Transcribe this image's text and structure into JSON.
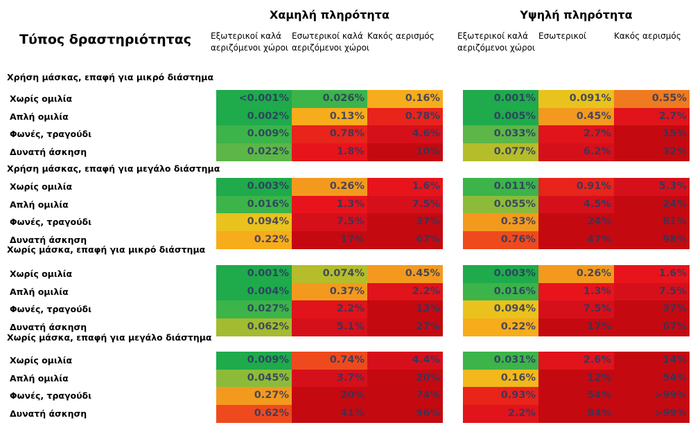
{
  "header": {
    "title": "Τύπος δραστηριότητας",
    "groups": [
      {
        "title": "Χαμηλή πληρότητα",
        "columns": [
          "Εξωτερικοί καλά αεριζόμενοι χώροι",
          "Εσωτερικοί καλά αεριζόμενοι χώροι",
          "Κακός αερισμός"
        ]
      },
      {
        "title": "Υψηλή πληρότητα",
        "columns": [
          "Εξωτερικοί καλά αεριζόμενοι χώροι",
          "Εσωτερικοί",
          "Κακός αερισμός"
        ]
      }
    ]
  },
  "sections": [
    {
      "title": "Χρήση μάσκας, επαφή για μικρό διάστημα",
      "rows": [
        {
          "label": "Χωρίς ομιλία",
          "cells": [
            "<0.001%",
            "0.026%",
            "0.16%",
            "0.001%",
            "0.091%",
            "0.55%"
          ],
          "colors": [
            "#1faa4b",
            "#3cb44a",
            "#f7ac1c",
            "#1faa4b",
            "#e9c21d",
            "#f07a1f"
          ]
        },
        {
          "label": "Απλή ομιλία",
          "cells": [
            "0.002%",
            "0.13%",
            "0.78%",
            "0.005%",
            "0.45%",
            "2.7%"
          ],
          "colors": [
            "#1faa4b",
            "#f7ac1c",
            "#e8241b",
            "#1faa4b",
            "#f39a1e",
            "#e0141a"
          ]
        },
        {
          "label": "Φωνές, τραγούδι",
          "cells": [
            "0.009%",
            "0.78%",
            "4.6%",
            "0.033%",
            "2.7%",
            "15%"
          ],
          "colors": [
            "#3cb44a",
            "#e8241b",
            "#d6101a",
            "#5cb648",
            "#e0141a",
            "#c40a10"
          ]
        },
        {
          "label": "Δυνατή άσκηση",
          "cells": [
            "0.022%",
            "1.8%",
            "10%",
            "0.077%",
            "6.2%",
            "32%"
          ],
          "colors": [
            "#5cb648",
            "#e8141b",
            "#c40a10",
            "#b5bd2a",
            "#d6101a",
            "#c40a10"
          ]
        }
      ]
    },
    {
      "title": "Χρήση μάσκας, επαφή για μεγάλο διάστημα",
      "rows": [
        {
          "label": "Χωρίς ομιλία",
          "cells": [
            "0.003%",
            "0.26%",
            "1.6%",
            "0.011%",
            "0.91%",
            "5.3%"
          ],
          "colors": [
            "#1faa4b",
            "#f39a1e",
            "#e8141b",
            "#3cb44a",
            "#e8241b",
            "#d6101a"
          ]
        },
        {
          "label": "Απλή ομιλία",
          "cells": [
            "0.016%",
            "1.3%",
            "7.5%",
            "0.055%",
            "4.5%",
            "24%"
          ],
          "colors": [
            "#3cb44a",
            "#e8141b",
            "#d6101a",
            "#8cbb3a",
            "#d6101a",
            "#c40a10"
          ]
        },
        {
          "label": "Φωνές, τραγούδι",
          "cells": [
            "0.094%",
            "7.5%",
            "37%",
            "0.33%",
            "24%",
            "81%"
          ],
          "colors": [
            "#e9c21d",
            "#d6101a",
            "#c40a10",
            "#f39a1e",
            "#c40a10",
            "#c40a10"
          ]
        },
        {
          "label": "Δυνατή άσκηση",
          "cells": [
            "0.22%",
            "17%",
            "67%",
            "0.76%",
            "47%",
            "98%"
          ],
          "colors": [
            "#f7ac1c",
            "#c40a10",
            "#c40a10",
            "#ee4a1e",
            "#c40a10",
            "#c40a10"
          ]
        }
      ]
    },
    {
      "title": "Χωρίς μάσκα, επαφή για μικρό διάστημα",
      "rows": [
        {
          "label": "Χωρίς ομιλία",
          "cells": [
            "0.001%",
            "0.074%",
            "0.45%",
            "0.003%",
            "0.26%",
            "1.6%"
          ],
          "colors": [
            "#1faa4b",
            "#b5bd2a",
            "#f39a1e",
            "#1faa4b",
            "#f39a1e",
            "#e8141b"
          ]
        },
        {
          "label": "Απλή ομιλία",
          "cells": [
            "0.004%",
            "0.37%",
            "2.2%",
            "0.016%",
            "1.3%",
            "7.5%"
          ],
          "colors": [
            "#1faa4b",
            "#f39a1e",
            "#e0141a",
            "#3cb44a",
            "#e8141b",
            "#d6101a"
          ]
        },
        {
          "label": "Φωνές, τραγούδι",
          "cells": [
            "0.027%",
            "2.2%",
            "13%",
            "0.094%",
            "7.5%",
            "37%"
          ],
          "colors": [
            "#3cb44a",
            "#e0141a",
            "#c40a10",
            "#e9c21d",
            "#d6101a",
            "#c40a10"
          ]
        },
        {
          "label": "Δυνατή άσκηση",
          "cells": [
            "0.062%",
            "5.1%",
            "27%",
            "0.22%",
            "17%",
            "67%"
          ],
          "colors": [
            "#a3bb30",
            "#d6101a",
            "#c40a10",
            "#f7ac1c",
            "#c40a10",
            "#c40a10"
          ]
        }
      ]
    },
    {
      "title": "Χωρίς μάσκα, επαφή για μεγάλο διάστημα",
      "rows": [
        {
          "label": "Χωρίς ομιλία",
          "cells": [
            "0.009%",
            "0.74%",
            "4.4%",
            "0.031%",
            "2.6%",
            "14%"
          ],
          "colors": [
            "#1faa4b",
            "#ee4a1e",
            "#d6101a",
            "#3cb44a",
            "#e0141a",
            "#c40a10"
          ]
        },
        {
          "label": "Απλή ομιλία",
          "cells": [
            "0.045%",
            "3.7%",
            "20%",
            "0.16%",
            "12%",
            "54%"
          ],
          "colors": [
            "#8cbb3a",
            "#d6101a",
            "#c40a10",
            "#f2b81c",
            "#c40a10",
            "#c40a10"
          ]
        },
        {
          "label": "Φωνές, τραγούδι",
          "cells": [
            "0.27%",
            "20%",
            "74%",
            "0.93%",
            "54%",
            ">99%"
          ],
          "colors": [
            "#f39a1e",
            "#c40a10",
            "#c40a10",
            "#e8241b",
            "#c40a10",
            "#c40a10"
          ]
        },
        {
          "label": "Δυνατή άσκηση",
          "cells": [
            "0.62%",
            "41%",
            "96%",
            "2.2%",
            "84%",
            ">99%"
          ],
          "colors": [
            "#ee4a1e",
            "#c40a10",
            "#c40a10",
            "#e0141a",
            "#c40a10",
            "#c40a10"
          ]
        }
      ]
    }
  ]
}
